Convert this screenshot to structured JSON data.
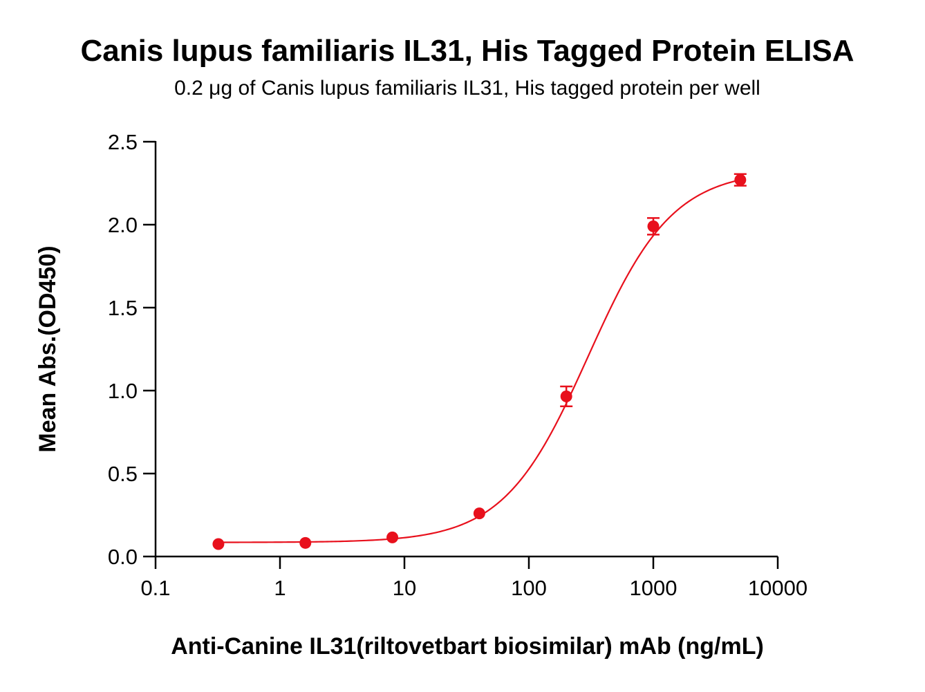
{
  "chart_data": {
    "type": "scatter",
    "title": "Canis lupus familiaris IL31, His Tagged Protein ELISA",
    "subtitle": "0.2 μg of Canis lupus familiaris IL31, His tagged protein per well",
    "xlabel": "Anti-Canine IL31(riltovetbart biosimilar) mAb (ng/mL)",
    "ylabel": "Mean Abs.(OD450)",
    "xscale": "log",
    "xlim": [
      0.1,
      10000
    ],
    "ylim": [
      0,
      2.5
    ],
    "x_ticks": [
      "0.1",
      "1",
      "10",
      "100",
      "1000",
      "10000"
    ],
    "y_ticks": [
      "0.0",
      "0.5",
      "1.0",
      "1.5",
      "2.0",
      "2.5"
    ],
    "grid": false,
    "color": "#e8101c",
    "series": [
      {
        "x": [
          0.32,
          1.6,
          8,
          40,
          200,
          1000,
          5000
        ],
        "y": [
          0.075,
          0.082,
          0.115,
          0.26,
          0.965,
          1.99,
          2.27
        ],
        "error": [
          0.0,
          0.0,
          0.0,
          0.0,
          0.06,
          0.05,
          0.035
        ],
        "fit": "4PL",
        "fit_params": {
          "bottom": 0.085,
          "top": 2.33,
          "ec50": 300,
          "hill": 1.28
        }
      }
    ]
  }
}
